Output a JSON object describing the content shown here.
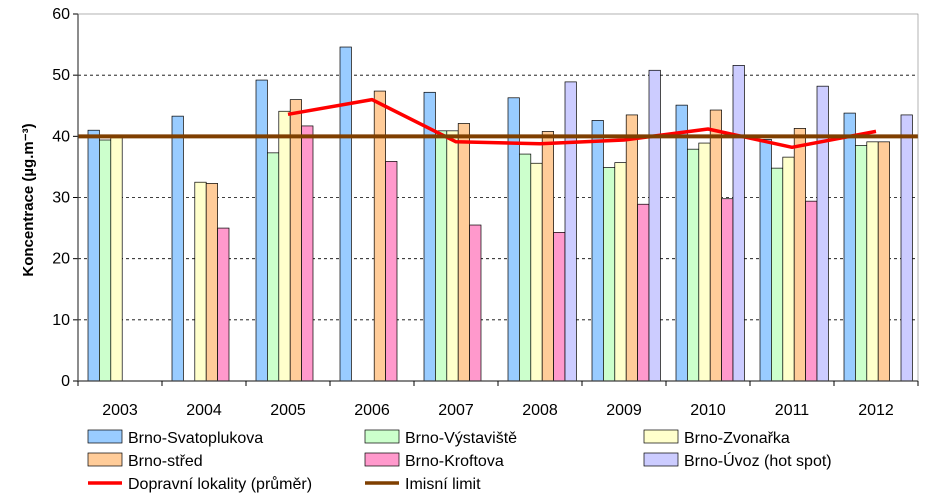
{
  "chart_data": {
    "type": "bar",
    "title": "",
    "xlabel": "",
    "ylabel": "Koncentrace (µg.m⁻³)",
    "ylim": [
      0,
      60
    ],
    "yticks": [
      0,
      10,
      20,
      30,
      40,
      50,
      60
    ],
    "grid": "horizontal dashed",
    "legend_position": "bottom",
    "categories": [
      "2003",
      "2004",
      "2005",
      "2006",
      "2007",
      "2008",
      "2009",
      "2010",
      "2011",
      "2012"
    ],
    "series": [
      {
        "name": "Brno-Svatoplukova",
        "color": "#99CCFF",
        "values": [
          41.0,
          43.3,
          49.2,
          54.6,
          47.2,
          46.3,
          42.6,
          45.1,
          39.5,
          43.8
        ]
      },
      {
        "name": "Brno-Výstaviště",
        "color": "#CCFFCC",
        "values": [
          39.4,
          null,
          37.3,
          null,
          40.9,
          37.1,
          34.9,
          37.9,
          34.8,
          38.5
        ]
      },
      {
        "name": "Brno-Zvonařka",
        "color": "#FFFFCC",
        "values": [
          40.0,
          32.5,
          44.1,
          null,
          40.9,
          35.6,
          35.7,
          38.9,
          36.6,
          39.1
        ]
      },
      {
        "name": "Brno-střed",
        "color": "#FFCC99",
        "values": [
          null,
          32.3,
          46.0,
          47.4,
          42.1,
          40.8,
          43.5,
          44.3,
          41.3,
          39.1
        ]
      },
      {
        "name": "Brno-Kroftova",
        "color": "#FF99CC",
        "values": [
          null,
          25.0,
          41.7,
          35.9,
          25.5,
          24.3,
          28.9,
          29.8,
          29.4,
          null
        ]
      },
      {
        "name": "Brno-Úvoz (hot spot)",
        "color": "#CCCCFF",
        "values": [
          null,
          null,
          null,
          null,
          null,
          48.9,
          50.8,
          51.6,
          48.2,
          43.5
        ]
      }
    ],
    "lines": [
      {
        "name": "Dopravní lokality (průměr)",
        "color": "#FF0000",
        "type": "line",
        "values": [
          null,
          null,
          43.6,
          46.0,
          39.1,
          38.8,
          39.4,
          41.2,
          38.2,
          40.8
        ]
      },
      {
        "name": "Imisní limit",
        "color": "#7F3F00",
        "type": "constant",
        "value": 40
      }
    ]
  }
}
